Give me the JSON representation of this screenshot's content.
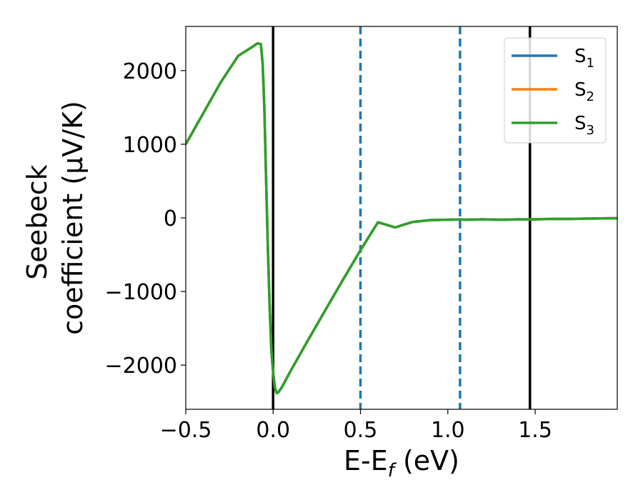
{
  "chart_data": {
    "type": "line",
    "xlabel": {
      "main": "E-E",
      "sub": "f",
      "unit": " (eV)"
    },
    "ylabel": {
      "line1": "Seebeck",
      "line2": "coefficient  (μV/K)"
    },
    "xlim": [
      -0.5,
      1.97
    ],
    "ylim": [
      -2600,
      2600
    ],
    "xticks": [
      -0.5,
      0.0,
      0.5,
      1.0,
      1.5
    ],
    "xtick_labels": [
      "−0.5",
      "0.0",
      "0.5",
      "1.0",
      "1.5"
    ],
    "yticks": [
      2000,
      1000,
      0,
      -1000,
      -2000
    ],
    "ytick_labels": [
      "2000",
      "1000",
      "0",
      "−1000",
      "−2000"
    ],
    "grid": false,
    "legend_position": "top-right",
    "series": [
      {
        "name": {
          "base": "S",
          "sub": "1"
        },
        "color": "#1f77b4",
        "x": [
          -0.5,
          -0.4,
          -0.3,
          -0.2,
          -0.12,
          -0.09,
          -0.07,
          -0.06,
          -0.05,
          -0.04,
          -0.03,
          -0.02,
          -0.01,
          0.0,
          0.01,
          0.02,
          0.03,
          0.05,
          0.1,
          0.2,
          0.3,
          0.4,
          0.5,
          0.6,
          0.7,
          0.75,
          0.8,
          0.9,
          1.0,
          1.07,
          1.1,
          1.2,
          1.3,
          1.4,
          1.47,
          1.6,
          1.7,
          1.8,
          1.97
        ],
        "y": [
          1000,
          1420,
          1840,
          2200,
          2320,
          2370,
          2360,
          2100,
          1500,
          500,
          -400,
          -1200,
          -1800,
          -2100,
          -2300,
          -2380,
          -2370,
          -2300,
          -2080,
          -1660,
          -1250,
          -840,
          -440,
          -60,
          -130,
          -90,
          -55,
          -30,
          -25,
          -20,
          -25,
          -20,
          -25,
          -20,
          -20,
          -15,
          -15,
          -10,
          -5
        ]
      },
      {
        "name": {
          "base": "S",
          "sub": "2"
        },
        "color": "#ff7f0e",
        "x": [
          -0.5,
          -0.4,
          -0.3,
          -0.2,
          -0.12,
          -0.09,
          -0.07,
          -0.06,
          -0.05,
          -0.04,
          -0.03,
          -0.02,
          -0.01,
          0.0,
          0.01,
          0.02,
          0.03,
          0.05,
          0.1,
          0.2,
          0.3,
          0.4,
          0.5,
          0.6,
          0.7,
          0.75,
          0.8,
          0.9,
          1.0,
          1.07,
          1.1,
          1.2,
          1.3,
          1.4,
          1.47,
          1.6,
          1.7,
          1.8,
          1.97
        ],
        "y": [
          1000,
          1420,
          1840,
          2200,
          2320,
          2370,
          2360,
          2100,
          1500,
          500,
          -400,
          -1200,
          -1800,
          -2100,
          -2300,
          -2380,
          -2370,
          -2300,
          -2080,
          -1660,
          -1250,
          -840,
          -440,
          -60,
          -130,
          -90,
          -55,
          -30,
          -25,
          -20,
          -25,
          -20,
          -25,
          -20,
          -20,
          -15,
          -15,
          -10,
          -5
        ]
      },
      {
        "name": {
          "base": "S",
          "sub": "3"
        },
        "color": "#2ca02c",
        "x": [
          -0.5,
          -0.4,
          -0.3,
          -0.2,
          -0.12,
          -0.09,
          -0.07,
          -0.06,
          -0.05,
          -0.04,
          -0.03,
          -0.02,
          -0.01,
          0.0,
          0.01,
          0.02,
          0.03,
          0.05,
          0.1,
          0.2,
          0.3,
          0.4,
          0.5,
          0.6,
          0.7,
          0.75,
          0.8,
          0.9,
          1.0,
          1.07,
          1.1,
          1.2,
          1.3,
          1.4,
          1.47,
          1.6,
          1.7,
          1.8,
          1.97
        ],
        "y": [
          1000,
          1420,
          1840,
          2200,
          2320,
          2370,
          2360,
          2100,
          1500,
          500,
          -400,
          -1200,
          -1800,
          -2100,
          -2300,
          -2380,
          -2370,
          -2300,
          -2080,
          -1660,
          -1250,
          -840,
          -440,
          -60,
          -130,
          -90,
          -55,
          -30,
          -25,
          -20,
          -25,
          -20,
          -25,
          -20,
          -20,
          -15,
          -15,
          -10,
          -5
        ]
      }
    ],
    "vertical_lines": [
      {
        "x": 0.0,
        "style": "solid",
        "color": "#000000"
      },
      {
        "x": 0.5,
        "style": "dashed",
        "color": "#1f77b4"
      },
      {
        "x": 1.07,
        "style": "dashed",
        "color": "#1f77b4"
      },
      {
        "x": 1.47,
        "style": "solid",
        "color": "#000000"
      }
    ]
  }
}
